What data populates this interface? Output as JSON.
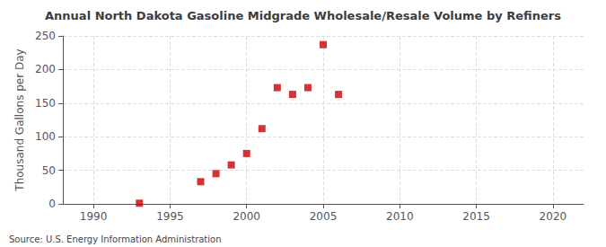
{
  "chart_data": {
    "type": "scatter",
    "title": "Annual North Dakota Gasoline Midgrade Wholesale/Resale Volume by Refiners",
    "ylabel": "Thousand Gallons per Day",
    "annotation": "Source: U.S. Energy Information Administration",
    "x": [
      1993,
      1997,
      1998,
      1999,
      2000,
      2001,
      2002,
      2003,
      2004,
      2005,
      2006
    ],
    "values": [
      1,
      33,
      45,
      58,
      75,
      112,
      173,
      163,
      173,
      237,
      163
    ],
    "color": "#cc0000",
    "marker": "square",
    "xlim": [
      1988,
      2022
    ],
    "xticks": [
      1990,
      1995,
      2000,
      2005,
      2010,
      2015,
      2020
    ],
    "ylim": [
      0,
      250
    ],
    "yticks": [
      0,
      50,
      100,
      150,
      200,
      250
    ],
    "grid": true
  }
}
